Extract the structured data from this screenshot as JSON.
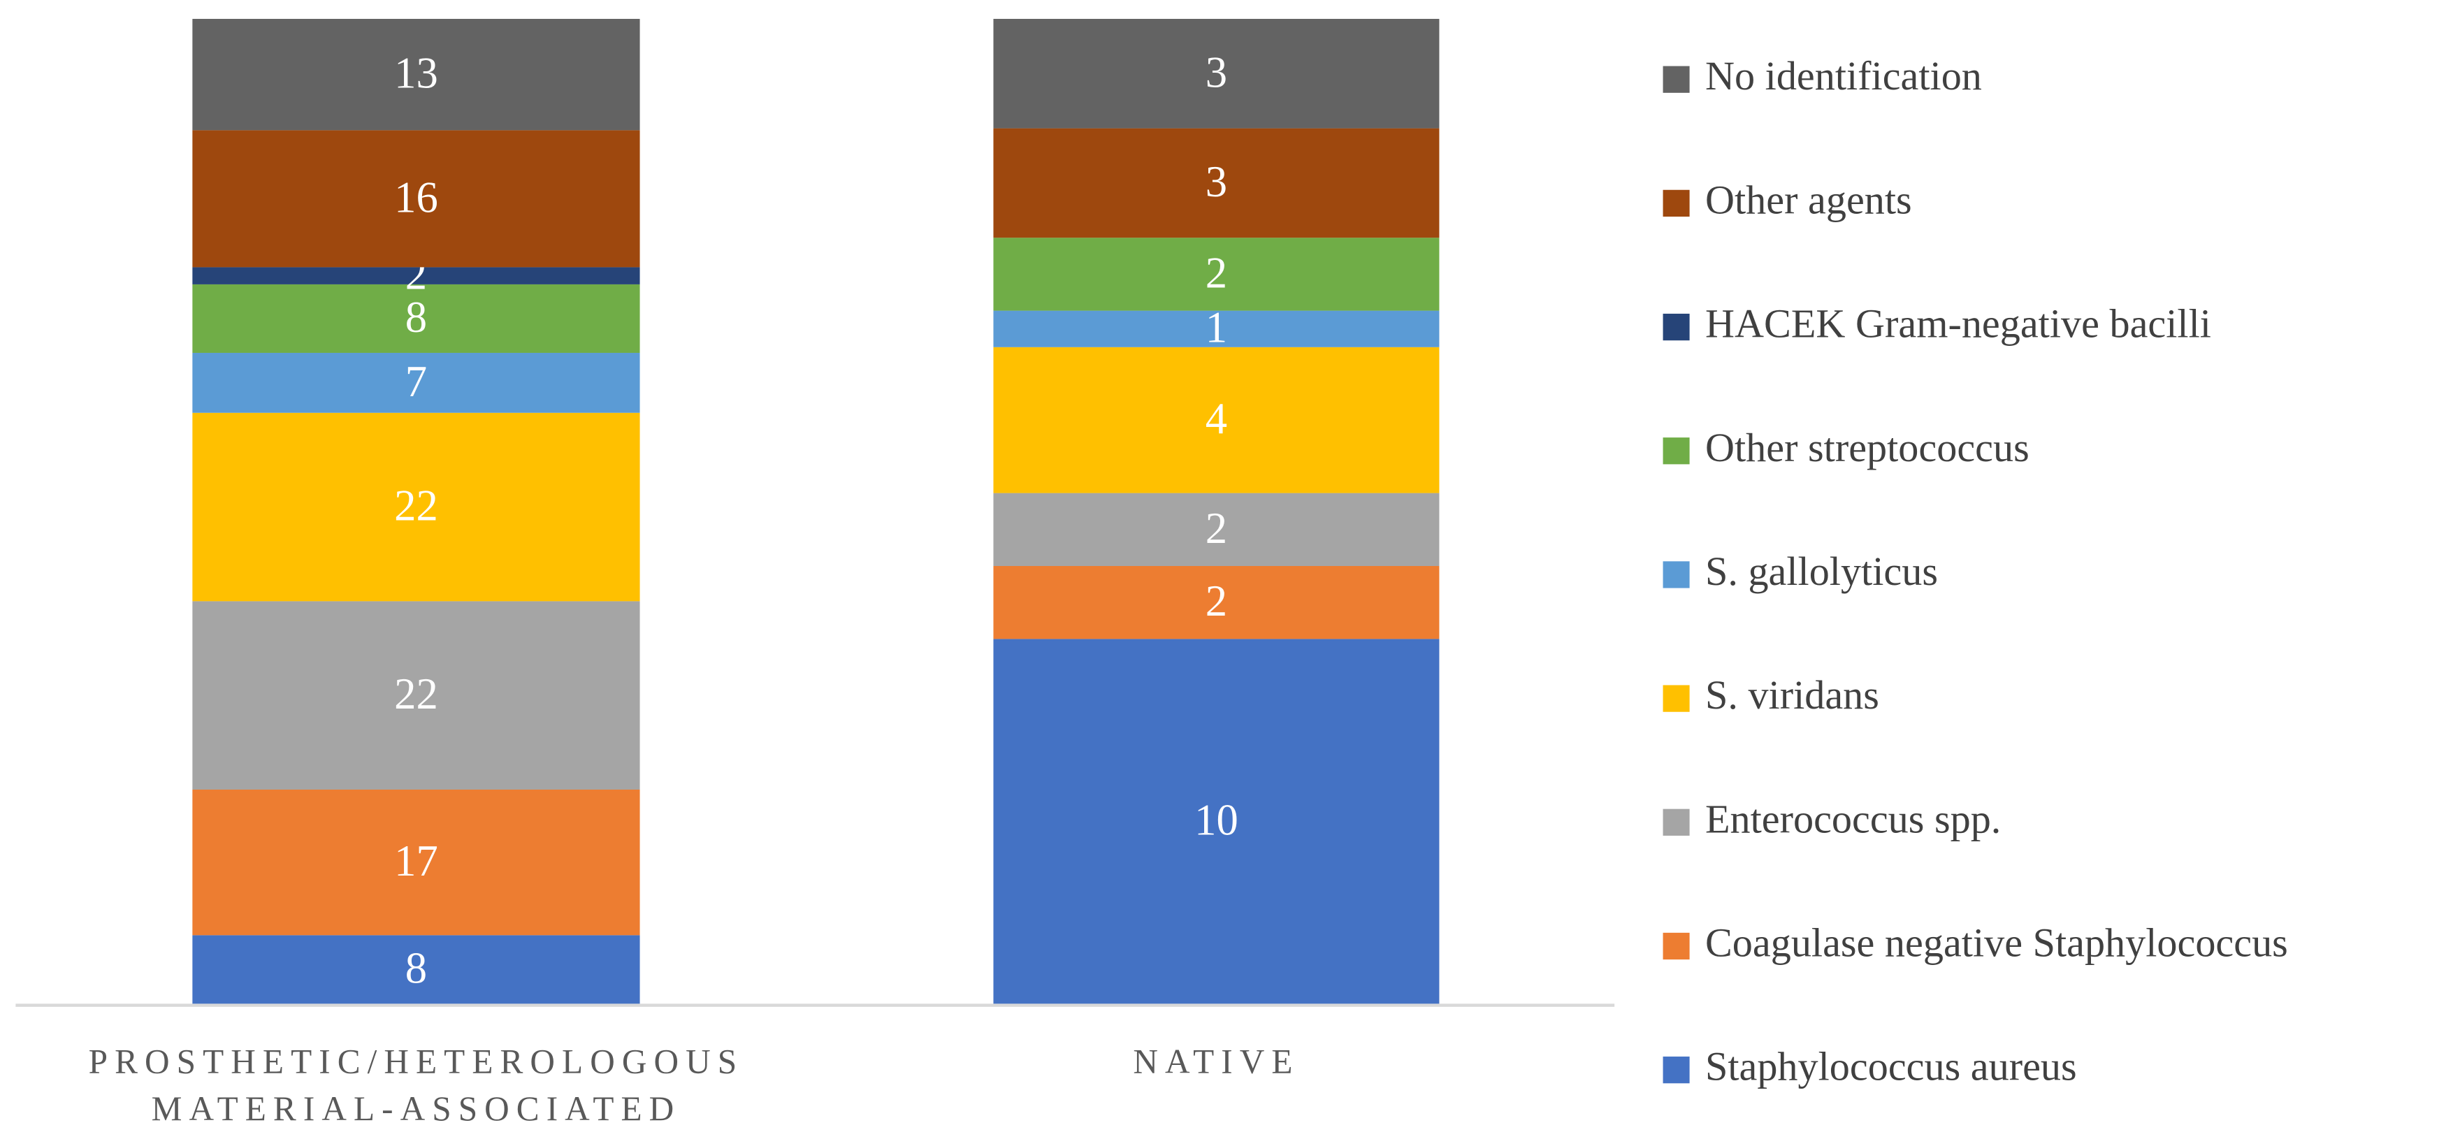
{
  "chart_data": {
    "type": "bar",
    "stacking": "percent",
    "categories": [
      "PROSTHETIC/HETEROLOGOUS MATERIAL-ASSOCIATED",
      "NATIVE"
    ],
    "series": [
      {
        "name": "Staphylococcus aureus",
        "color": "#4472c4",
        "values": [
          8,
          10
        ]
      },
      {
        "name": "Coagulase negative Staphylococcus",
        "color": "#ed7d31",
        "values": [
          17,
          2
        ]
      },
      {
        "name": "Enterococcus spp.",
        "color": "#a5a5a5",
        "values": [
          22,
          2
        ]
      },
      {
        "name": "S. viridans",
        "color": "#ffc000",
        "values": [
          22,
          4
        ]
      },
      {
        "name": "S. gallolyticus",
        "color": "#5b9bd5",
        "values": [
          7,
          1
        ]
      },
      {
        "name": "Other streptococcus",
        "color": "#70ad47",
        "values": [
          8,
          2
        ]
      },
      {
        "name": "HACEK Gram-negative bacilli",
        "color": "#264478",
        "values": [
          2,
          null
        ]
      },
      {
        "name": "Other agents",
        "color": "#9e480e",
        "values": [
          16,
          3
        ]
      },
      {
        "name": "No identification",
        "color": "#636363",
        "values": [
          13,
          3
        ]
      }
    ],
    "legend": "right"
  }
}
